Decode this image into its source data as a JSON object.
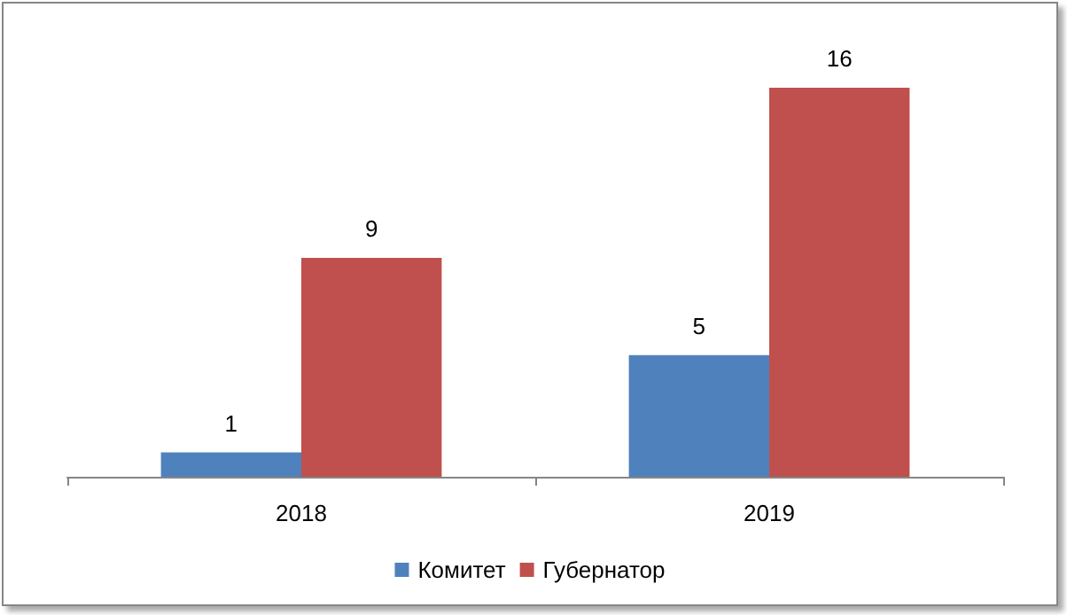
{
  "chart_data": {
    "type": "bar",
    "categories": [
      "2018",
      "2019"
    ],
    "series": [
      {
        "name": "Комитет",
        "color": "#4f81bd",
        "values": [
          1,
          5
        ]
      },
      {
        "name": "Губернатор",
        "color": "#c0504d",
        "values": [
          9,
          16
        ]
      }
    ],
    "data_labels": true,
    "legend": "bottom",
    "grid": false
  }
}
